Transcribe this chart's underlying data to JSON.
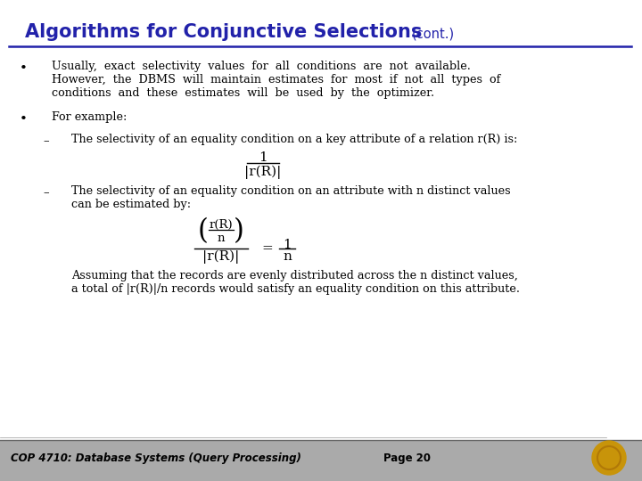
{
  "title_main": "Algorithms for Conjunctive Selections",
  "title_cont": "(cont.)",
  "title_color": "#2222aa",
  "bg_color": "#ffffff",
  "footer_bg": "#aaaaaa",
  "footer_text": "COP 4710: Database Systems (Query Processing)",
  "footer_page": "Page 20",
  "footer_color": "#000000",
  "body_color": "#000000",
  "bullet1_l1": "Usually,  exact  selectivity  values  for  all  conditions  are  not  available.",
  "bullet1_l2": "However,  the  DBMS  will  maintain  estimates  for  most  if  not  all  types  of",
  "bullet1_l3": "conditions  and  these  estimates  will  be  used  by  the  optimizer.",
  "bullet2": "For example:",
  "sub1": "The selectivity of an equality condition on a key attribute of a relation r(R) is:",
  "sub2_line1": "The selectivity of an equality condition on an attribute with n distinct values",
  "sub2_line2": "can be estimated by:",
  "assume_line1": "Assuming that the records are evenly distributed across the n distinct values,",
  "assume_line2": "a total of |r(R)|/n records would satisfy an equality condition on this attribute."
}
